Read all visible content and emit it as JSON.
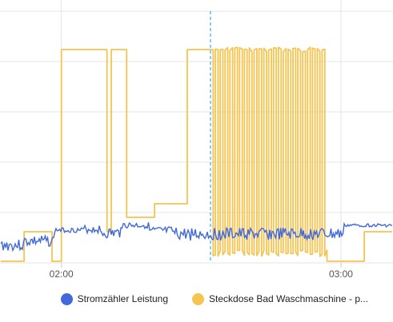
{
  "chart_data": {
    "type": "line",
    "x_ticks": [
      "02:00",
      "03:00"
    ],
    "series": [
      {
        "name": "Stromzähler Leistung",
        "color": "#4169d9",
        "shape": "step",
        "level": "low",
        "noise": true
      },
      {
        "name": "Steckdose Bad Waschmaschine - p...",
        "color": "#f5c451",
        "shape": "step",
        "segments": [
          {
            "t": [
              "01:47",
              "01:52"
            ],
            "level": "off"
          },
          {
            "t": [
              "01:52",
              "01:58"
            ],
            "level": "low"
          },
          {
            "t": [
              "01:58",
              "02:00"
            ],
            "level": "off"
          },
          {
            "t": [
              "02:00",
              "02:08"
            ],
            "level": "high"
          },
          {
            "t": [
              "02:08",
              "02:14"
            ],
            "level": "high-dip"
          },
          {
            "t": [
              "02:14",
              "02:20"
            ],
            "level": "medium-low"
          },
          {
            "t": [
              "02:20",
              "02:27"
            ],
            "level": "low-medium"
          },
          {
            "t": [
              "02:27",
              "02:32"
            ],
            "level": "high"
          },
          {
            "t": [
              "02:32",
              "02:57"
            ],
            "level": "oscillating"
          },
          {
            "t": [
              "02:57",
              "03:05"
            ],
            "level": "off"
          },
          {
            "t": [
              "03:05",
              "03:11"
            ],
            "level": "low"
          }
        ]
      }
    ],
    "x_range": [
      "01:47",
      "03:11"
    ],
    "grid": true,
    "legend_position": "bottom-right",
    "cursor_marker_time": "02:32"
  }
}
